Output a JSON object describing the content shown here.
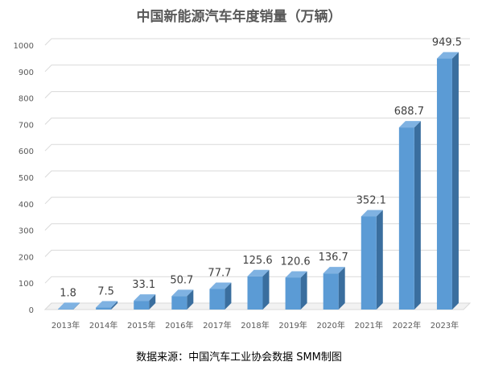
{
  "chart_data": {
    "type": "bar",
    "title": "中国新能源汽车年度销量（万辆）",
    "categories": [
      "2013年",
      "2014年",
      "2015年",
      "2016年",
      "2017年",
      "2018年",
      "2019年",
      "2020年",
      "2021年",
      "2022年",
      "2023年"
    ],
    "values": [
      1.8,
      7.5,
      33.1,
      50.7,
      77.7,
      125.6,
      120.6,
      136.7,
      352.1,
      688.7,
      949.5
    ],
    "data_labels": [
      "1.8",
      "7.5",
      "33.1",
      "50.7",
      "77.7",
      "125.6",
      "120.6",
      "136.7",
      "352.1",
      "688.7",
      "949.5"
    ],
    "ylim": [
      0,
      1000
    ],
    "y_ticks": [
      0,
      100,
      200,
      300,
      400,
      500,
      600,
      700,
      800,
      900,
      1000
    ],
    "grid": true,
    "legend": "none",
    "style": "3d-column",
    "colors": {
      "bar_front": "#5b9bd5",
      "bar_top": "#7fb2e2",
      "bar_side": "#3a6e9e",
      "grid": "#d9d9d9",
      "text": "#595959"
    }
  },
  "footer": {
    "source": "数据来源：中国汽车工业协会数据 SMM制图"
  }
}
